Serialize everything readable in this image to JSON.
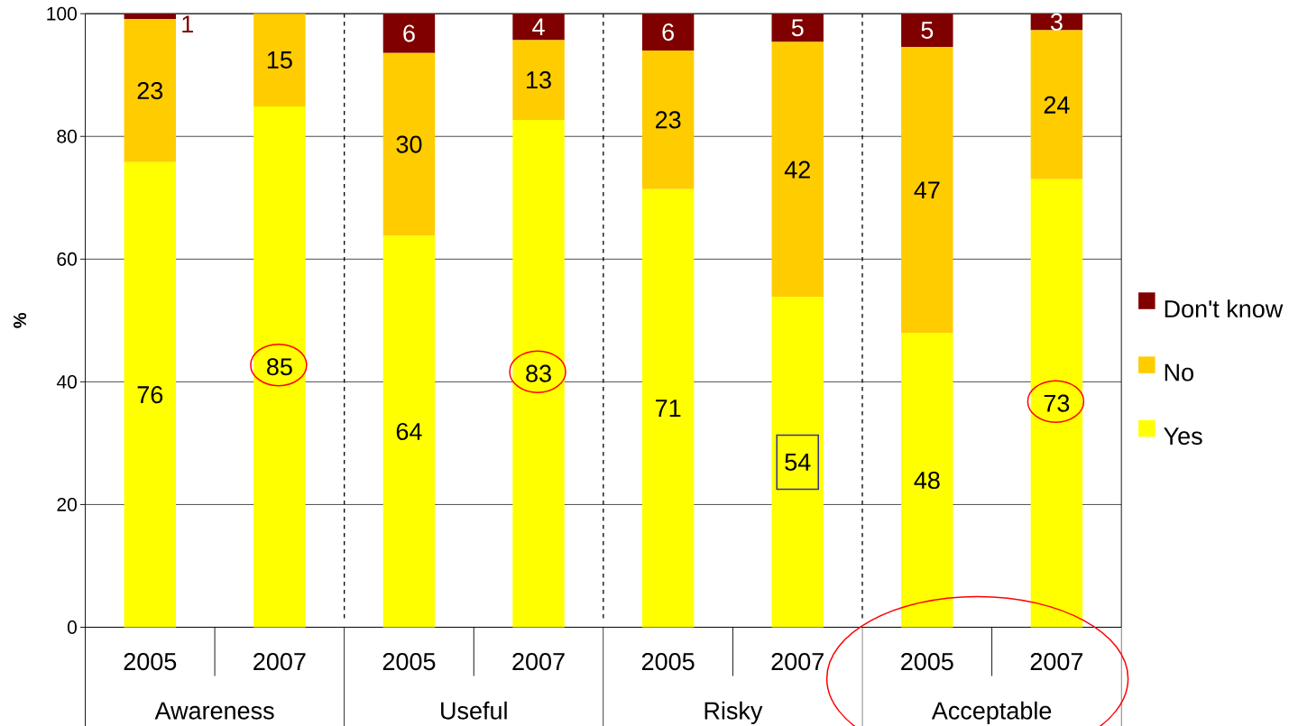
{
  "chart_data": {
    "type": "bar",
    "stacked": true,
    "categories": [
      "2005",
      "2007",
      "2005",
      "2007",
      "2005",
      "2007",
      "2005",
      "2007"
    ],
    "series": [
      {
        "name": "Yes",
        "color": "#ffff00",
        "values": [
          75.8,
          84.9,
          63.8,
          82.7,
          71.4,
          53.8,
          47.9,
          73.0
        ],
        "value_labels": [
          "76",
          "85",
          "64",
          "83",
          "71",
          "54",
          "48",
          "73"
        ]
      },
      {
        "name": "No",
        "color": "#ffcc00",
        "values": [
          23.3,
          15.1,
          29.8,
          13.0,
          22.6,
          41.6,
          46.7,
          24.3
        ],
        "value_labels": [
          "23",
          "15",
          "30",
          "13",
          "23",
          "42",
          "47",
          "24"
        ]
      },
      {
        "name": "Don't know",
        "color": "#800000",
        "values": [
          0.9,
          null,
          6.4,
          4.3,
          6.0,
          4.6,
          5.4,
          2.7
        ],
        "value_labels": [
          "1",
          null,
          "6",
          "4",
          "6",
          "5",
          "5",
          "3"
        ]
      }
    ],
    "ylabel": "%",
    "annotations": [
      "Awareness",
      "Useful",
      "Risky",
      "Acceptable"
    ],
    "ylim": [
      0,
      100
    ],
    "yticks": [
      0,
      20,
      40,
      60,
      80,
      100
    ],
    "grid": "y",
    "legend": "right"
  }
}
